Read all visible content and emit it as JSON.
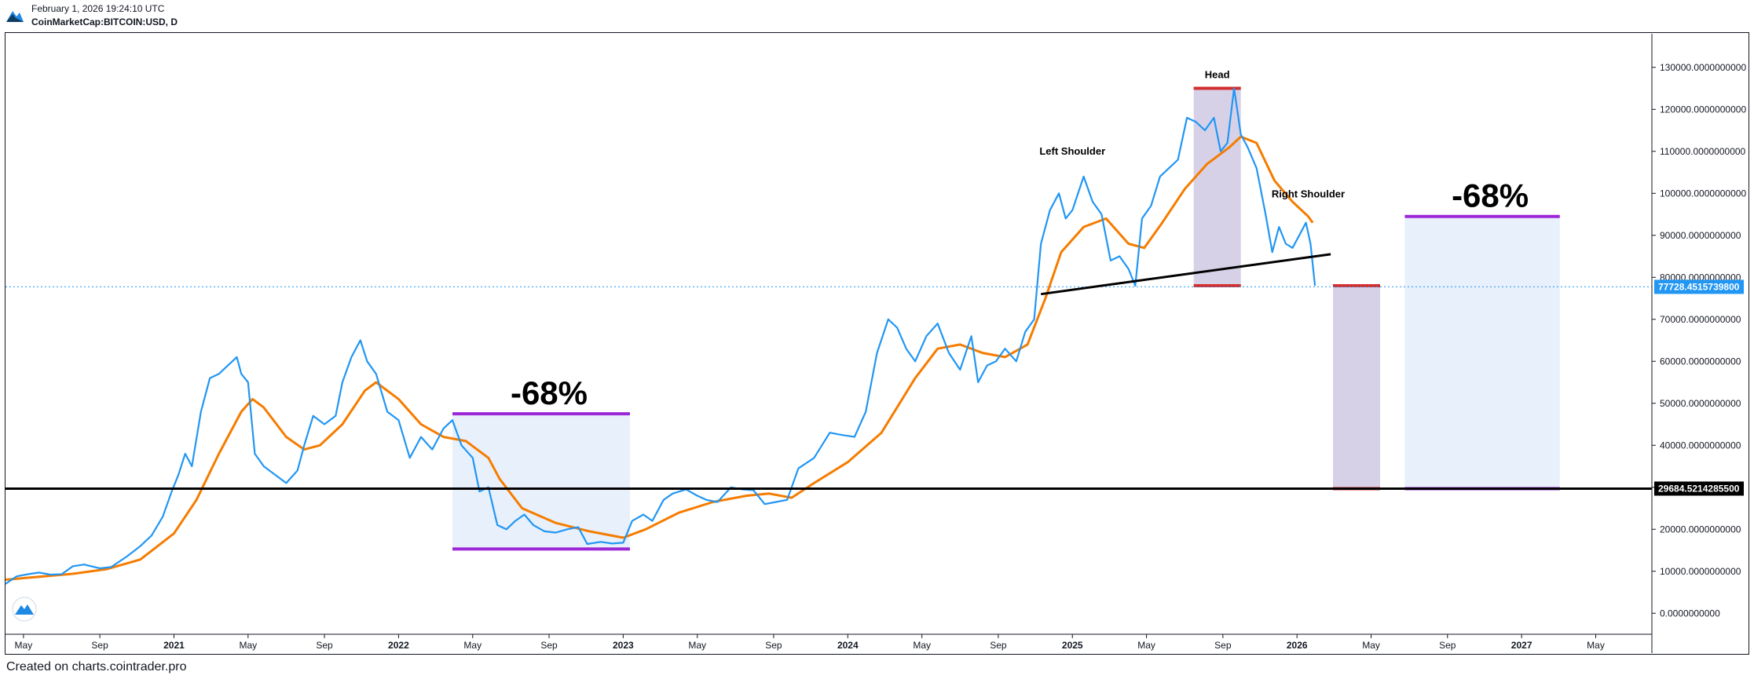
{
  "header": {
    "timestamp": "February 1, 2026 19:24:10 UTC",
    "symbol": "CoinMarketCap:BITCOIN:USD, D"
  },
  "footer": {
    "credit": "Created on charts.cointrader.pro"
  },
  "colors": {
    "price": "#2196f3",
    "ma": "#f57c00",
    "support": "#000000",
    "zone_fill": "#e8f0fb",
    "target_fill": "#d7d1e8",
    "target_edge": "#d32f2f",
    "purple": "#9c27d6",
    "price_label_bg": "#2196f3",
    "support_label_bg": "#000000"
  },
  "chart_data": {
    "type": "line",
    "title": "CoinMarketCap:BITCOIN:USD, D",
    "x_range": [
      2020.25,
      2027.58
    ],
    "ylim": [
      -5000,
      138000
    ],
    "y_ticks": [
      0,
      10000,
      20000,
      30000,
      40000,
      50000,
      60000,
      70000,
      80000,
      90000,
      100000,
      110000,
      120000,
      130000
    ],
    "y_tick_labels": [
      "0.0000000000",
      "10000.0000000000",
      "20000.0000000000",
      "30000.0000000000",
      "40000.0000000000",
      "50000.0000000000",
      "60000.0000000000",
      "70000.0000000000",
      "80000.0000000000",
      "90000.0000000000",
      "100000.0000000000",
      "110000.0000000000",
      "120000.0000000000",
      "130000.0000000000"
    ],
    "x_ticks": [
      {
        "t": 2020.33,
        "label": "May"
      },
      {
        "t": 2020.67,
        "label": "Sep"
      },
      {
        "t": 2021.0,
        "label": "2021"
      },
      {
        "t": 2021.33,
        "label": "May"
      },
      {
        "t": 2021.67,
        "label": "Sep"
      },
      {
        "t": 2022.0,
        "label": "2022"
      },
      {
        "t": 2022.33,
        "label": "May"
      },
      {
        "t": 2022.67,
        "label": "Sep"
      },
      {
        "t": 2023.0,
        "label": "2023"
      },
      {
        "t": 2023.33,
        "label": "May"
      },
      {
        "t": 2023.67,
        "label": "Sep"
      },
      {
        "t": 2024.0,
        "label": "2024"
      },
      {
        "t": 2024.33,
        "label": "May"
      },
      {
        "t": 2024.67,
        "label": "Sep"
      },
      {
        "t": 2025.0,
        "label": "2025"
      },
      {
        "t": 2025.33,
        "label": "May"
      },
      {
        "t": 2025.67,
        "label": "Sep"
      },
      {
        "t": 2026.0,
        "label": "2026"
      },
      {
        "t": 2026.33,
        "label": "May"
      },
      {
        "t": 2026.67,
        "label": "Sep"
      },
      {
        "t": 2027.0,
        "label": "2027"
      },
      {
        "t": 2027.33,
        "label": "May"
      }
    ],
    "series": [
      {
        "name": "BTC price",
        "points": [
          [
            2020.25,
            7000
          ],
          [
            2020.3,
            8800
          ],
          [
            2020.35,
            9300
          ],
          [
            2020.4,
            9700
          ],
          [
            2020.45,
            9200
          ],
          [
            2020.5,
            9300
          ],
          [
            2020.55,
            11200
          ],
          [
            2020.6,
            11600
          ],
          [
            2020.67,
            10700
          ],
          [
            2020.72,
            11000
          ],
          [
            2020.79,
            13500
          ],
          [
            2020.85,
            16000
          ],
          [
            2020.9,
            18500
          ],
          [
            2020.95,
            23000
          ],
          [
            2020.99,
            29000
          ],
          [
            2021.02,
            33000
          ],
          [
            2021.05,
            38000
          ],
          [
            2021.08,
            35000
          ],
          [
            2021.12,
            48000
          ],
          [
            2021.16,
            56000
          ],
          [
            2021.2,
            57000
          ],
          [
            2021.24,
            59000
          ],
          [
            2021.28,
            61000
          ],
          [
            2021.3,
            57000
          ],
          [
            2021.33,
            55000
          ],
          [
            2021.36,
            38000
          ],
          [
            2021.4,
            35000
          ],
          [
            2021.45,
            33000
          ],
          [
            2021.5,
            31000
          ],
          [
            2021.55,
            34000
          ],
          [
            2021.58,
            40000
          ],
          [
            2021.62,
            47000
          ],
          [
            2021.67,
            45000
          ],
          [
            2021.72,
            47000
          ],
          [
            2021.75,
            55000
          ],
          [
            2021.79,
            61000
          ],
          [
            2021.83,
            65000
          ],
          [
            2021.86,
            60000
          ],
          [
            2021.9,
            57000
          ],
          [
            2021.95,
            48000
          ],
          [
            2022.0,
            46000
          ],
          [
            2022.05,
            37000
          ],
          [
            2022.1,
            42000
          ],
          [
            2022.15,
            39000
          ],
          [
            2022.2,
            44000
          ],
          [
            2022.24,
            46000
          ],
          [
            2022.28,
            40000
          ],
          [
            2022.33,
            37000
          ],
          [
            2022.36,
            29000
          ],
          [
            2022.4,
            30000
          ],
          [
            2022.44,
            21000
          ],
          [
            2022.48,
            20000
          ],
          [
            2022.52,
            22000
          ],
          [
            2022.56,
            23500
          ],
          [
            2022.6,
            21000
          ],
          [
            2022.65,
            19500
          ],
          [
            2022.7,
            19200
          ],
          [
            2022.75,
            20000
          ],
          [
            2022.8,
            20500
          ],
          [
            2022.84,
            16500
          ],
          [
            2022.9,
            17000
          ],
          [
            2022.95,
            16600
          ],
          [
            2023.0,
            16800
          ],
          [
            2023.04,
            22000
          ],
          [
            2023.09,
            23500
          ],
          [
            2023.13,
            22000
          ],
          [
            2023.18,
            27000
          ],
          [
            2023.22,
            28500
          ],
          [
            2023.28,
            29500
          ],
          [
            2023.33,
            28000
          ],
          [
            2023.37,
            27000
          ],
          [
            2023.42,
            26500
          ],
          [
            2023.48,
            30000
          ],
          [
            2023.53,
            29500
          ],
          [
            2023.58,
            29300
          ],
          [
            2023.63,
            26000
          ],
          [
            2023.68,
            26500
          ],
          [
            2023.73,
            27000
          ],
          [
            2023.78,
            34500
          ],
          [
            2023.85,
            37000
          ],
          [
            2023.92,
            43000
          ],
          [
            2023.97,
            42500
          ],
          [
            2024.03,
            42000
          ],
          [
            2024.08,
            48000
          ],
          [
            2024.13,
            62000
          ],
          [
            2024.18,
            70000
          ],
          [
            2024.22,
            68000
          ],
          [
            2024.26,
            63000
          ],
          [
            2024.3,
            60000
          ],
          [
            2024.35,
            66000
          ],
          [
            2024.4,
            69000
          ],
          [
            2024.45,
            62000
          ],
          [
            2024.5,
            58000
          ],
          [
            2024.55,
            66000
          ],
          [
            2024.58,
            55000
          ],
          [
            2024.62,
            59000
          ],
          [
            2024.66,
            60000
          ],
          [
            2024.7,
            63000
          ],
          [
            2024.75,
            60000
          ],
          [
            2024.79,
            67000
          ],
          [
            2024.83,
            70000
          ],
          [
            2024.86,
            88000
          ],
          [
            2024.9,
            96000
          ],
          [
            2024.94,
            100000
          ],
          [
            2024.97,
            94000
          ],
          [
            2025.0,
            96000
          ],
          [
            2025.05,
            104000
          ],
          [
            2025.09,
            98000
          ],
          [
            2025.13,
            95000
          ],
          [
            2025.17,
            84000
          ],
          [
            2025.21,
            85000
          ],
          [
            2025.25,
            82000
          ],
          [
            2025.28,
            78000
          ],
          [
            2025.31,
            94000
          ],
          [
            2025.35,
            97000
          ],
          [
            2025.39,
            104000
          ],
          [
            2025.43,
            106000
          ],
          [
            2025.47,
            108000
          ],
          [
            2025.51,
            118000
          ],
          [
            2025.55,
            117000
          ],
          [
            2025.59,
            115000
          ],
          [
            2025.63,
            118000
          ],
          [
            2025.66,
            110000
          ],
          [
            2025.69,
            112000
          ],
          [
            2025.72,
            125000
          ],
          [
            2025.75,
            114000
          ],
          [
            2025.78,
            111000
          ],
          [
            2025.82,
            106000
          ],
          [
            2025.86,
            95000
          ],
          [
            2025.89,
            86000
          ],
          [
            2025.92,
            92000
          ],
          [
            2025.95,
            88000
          ],
          [
            2025.98,
            87000
          ],
          [
            2026.01,
            90000
          ],
          [
            2026.04,
            93000
          ],
          [
            2026.06,
            88000
          ],
          [
            2026.08,
            78000
          ]
        ]
      },
      {
        "name": "Moving average",
        "points": [
          [
            2020.25,
            8000
          ],
          [
            2020.4,
            8700
          ],
          [
            2020.55,
            9400
          ],
          [
            2020.7,
            10500
          ],
          [
            2020.85,
            12800
          ],
          [
            2021.0,
            19000
          ],
          [
            2021.1,
            27000
          ],
          [
            2021.2,
            38000
          ],
          [
            2021.3,
            48000
          ],
          [
            2021.35,
            51000
          ],
          [
            2021.4,
            49000
          ],
          [
            2021.5,
            42000
          ],
          [
            2021.58,
            39000
          ],
          [
            2021.65,
            40000
          ],
          [
            2021.75,
            45000
          ],
          [
            2021.85,
            53000
          ],
          [
            2021.9,
            55000
          ],
          [
            2022.0,
            51000
          ],
          [
            2022.1,
            45000
          ],
          [
            2022.2,
            42000
          ],
          [
            2022.3,
            41000
          ],
          [
            2022.4,
            37000
          ],
          [
            2022.45,
            32000
          ],
          [
            2022.55,
            25000
          ],
          [
            2022.7,
            21500
          ],
          [
            2022.85,
            19500
          ],
          [
            2023.0,
            18000
          ],
          [
            2023.1,
            20000
          ],
          [
            2023.25,
            24000
          ],
          [
            2023.4,
            26500
          ],
          [
            2023.55,
            28000
          ],
          [
            2023.65,
            28500
          ],
          [
            2023.75,
            27500
          ],
          [
            2023.85,
            31000
          ],
          [
            2024.0,
            36000
          ],
          [
            2024.15,
            43000
          ],
          [
            2024.3,
            56000
          ],
          [
            2024.4,
            63000
          ],
          [
            2024.5,
            64000
          ],
          [
            2024.6,
            62000
          ],
          [
            2024.7,
            61000
          ],
          [
            2024.8,
            64000
          ],
          [
            2024.88,
            75000
          ],
          [
            2024.95,
            86000
          ],
          [
            2025.05,
            92000
          ],
          [
            2025.15,
            94000
          ],
          [
            2025.25,
            88000
          ],
          [
            2025.32,
            87000
          ],
          [
            2025.4,
            93000
          ],
          [
            2025.5,
            101000
          ],
          [
            2025.6,
            107000
          ],
          [
            2025.7,
            111000
          ],
          [
            2025.75,
            113500
          ],
          [
            2025.82,
            112000
          ],
          [
            2025.9,
            103000
          ],
          [
            2025.98,
            98000
          ],
          [
            2026.05,
            94500
          ],
          [
            2026.07,
            93000
          ]
        ]
      }
    ],
    "support_level": 29684.52142855,
    "support_label": "29684.5214285500",
    "last_price": 77728.45157398,
    "last_price_label": "77728.4515739800",
    "neckline": {
      "from": [
        2024.86,
        76000
      ],
      "to": [
        2026.15,
        85500
      ]
    },
    "annotations": {
      "left_shoulder": "Left Shoulder",
      "head": "Head",
      "right_shoulder": "Right Shoulder",
      "drop_1": "-68%",
      "drop_2": "-68%"
    },
    "zones": {
      "drawdown_2022": {
        "t0": 2022.24,
        "t1": 2023.03,
        "top": 47500,
        "bottom": 15300
      },
      "head_height": {
        "t0": 2025.54,
        "t1": 2025.75,
        "top": 125000,
        "bottom": 78000
      },
      "projected_target": {
        "t0": 2026.16,
        "t1": 2026.37,
        "top": 78000,
        "bottom": 29684
      },
      "projected_drop": {
        "t0": 2026.48,
        "t1": 2027.17,
        "top": 94500,
        "bottom": 29684
      }
    }
  }
}
